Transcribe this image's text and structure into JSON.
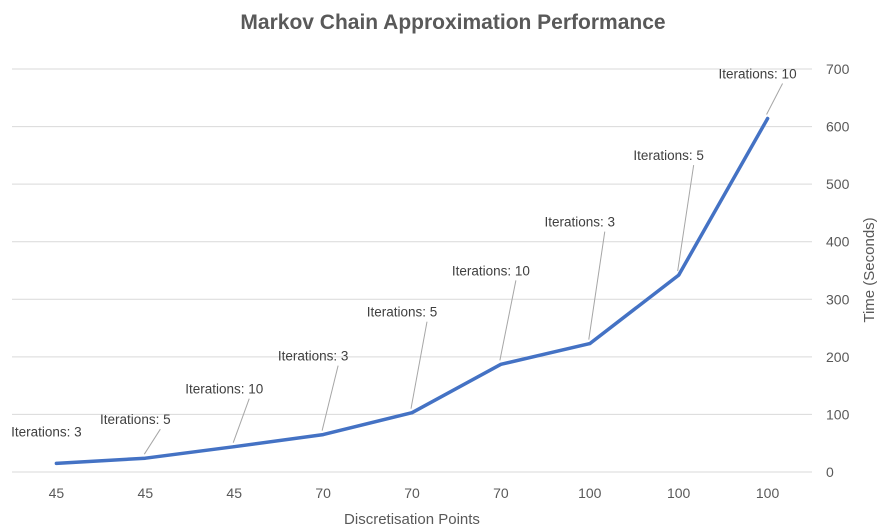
{
  "chart_data": {
    "type": "line",
    "title": "Markov Chain Approximation Performance",
    "xlabel": "Discretisation Points",
    "ylabel": "Time (Seconds)",
    "y_axis_side": "right",
    "ylim": [
      0,
      700
    ],
    "yticks": [
      "0",
      "100",
      "200",
      "300",
      "400",
      "500",
      "600",
      "700"
    ],
    "grid": true,
    "legend": "none",
    "categories": [
      "45",
      "45",
      "45",
      "70",
      "70",
      "70",
      "100",
      "100",
      "100"
    ],
    "series": [
      {
        "values": [
          15,
          24,
          44,
          65,
          103,
          187,
          223,
          342,
          614
        ],
        "color": "#4472c4",
        "data_labels": [
          "Iterations: 3",
          "Iterations: 5",
          "Iterations: 10",
          "Iterations: 3",
          "Iterations: 5",
          "Iterations: 10",
          "Iterations: 3",
          "Iterations: 5",
          "Iterations: 10"
        ]
      }
    ]
  }
}
